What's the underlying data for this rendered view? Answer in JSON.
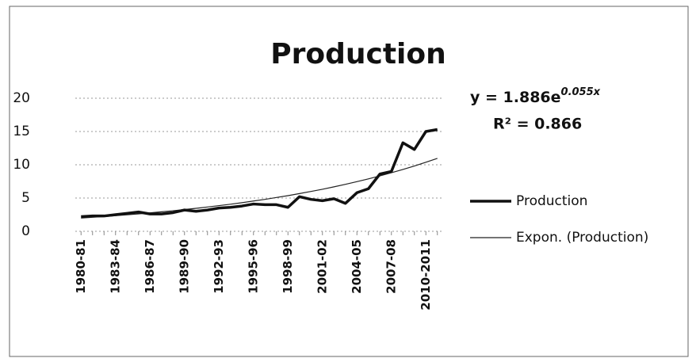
{
  "chart_data": {
    "type": "line",
    "title": "Production",
    "categories": [
      "1980-81",
      null,
      null,
      "1983-84",
      null,
      null,
      "1986-87",
      null,
      null,
      "1989-90",
      null,
      null,
      "1992-93",
      null,
      null,
      "1995-96",
      null,
      null,
      "1998-99",
      null,
      null,
      "2001-02",
      null,
      null,
      "2004-05",
      null,
      null,
      "2007-08",
      null,
      null,
      "2010-2011",
      null
    ],
    "series": [
      {
        "name": "Production",
        "color": "#111111",
        "width": 3.5,
        "values": [
          2.2,
          2.3,
          2.3,
          2.5,
          2.7,
          2.9,
          2.6,
          2.6,
          2.8,
          3.2,
          3.0,
          3.2,
          3.5,
          3.6,
          3.8,
          4.1,
          4.0,
          4.0,
          3.6,
          5.2,
          4.8,
          4.6,
          4.9,
          4.2,
          5.8,
          6.4,
          8.6,
          9.0,
          13.3,
          12.3,
          15.0,
          15.3
        ]
      },
      {
        "name": "Expon. (Production)",
        "color": "#222222",
        "width": 1.2,
        "values": [
          1.99,
          2.11,
          2.22,
          2.35,
          2.48,
          2.62,
          2.77,
          2.93,
          3.09,
          3.27,
          3.45,
          3.65,
          3.86,
          4.07,
          4.3,
          4.55,
          4.8,
          5.08,
          5.36,
          5.67,
          5.99,
          6.32,
          6.68,
          7.06,
          7.46,
          7.88,
          8.33,
          8.8,
          9.29,
          9.82,
          10.38,
          10.96
        ]
      }
    ],
    "annotations": {
      "equation": "y = 1.886e",
      "exponent": "0.055x",
      "r_squared": "R² = 0.866"
    },
    "ylim": [
      0,
      20
    ],
    "yticks": [
      0,
      5,
      10,
      15,
      20
    ],
    "grid": true,
    "legend": "right"
  }
}
